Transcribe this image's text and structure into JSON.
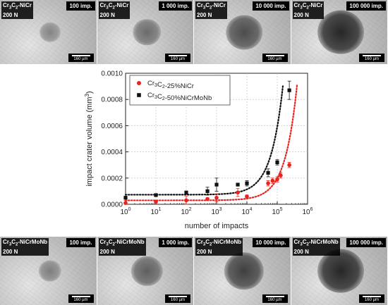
{
  "top_panels": [
    {
      "material": "Cr3C2-NiCr",
      "load": "200 N",
      "impacts": "100 imp.",
      "scale": "160 µm",
      "crater": 0.25
    },
    {
      "material": "Cr3C2-NiCr",
      "load": "200 N",
      "impacts": "1 000 imp.",
      "scale": "160 µm",
      "crater": 0.45
    },
    {
      "material": "Cr3C2-NiCr",
      "load": "200 N",
      "impacts": "10 000 imp.",
      "scale": "160 µm",
      "crater": 0.7
    },
    {
      "material": "Cr3C2-NiCr",
      "load": "200 N",
      "impacts": "100 000 imp.",
      "scale": "160 µm",
      "crater": 1.0
    }
  ],
  "bottom_panels": [
    {
      "material": "Cr3C2-NiCrMoNb",
      "load": "200 N",
      "impacts": "100 imp.",
      "scale": "160 µm",
      "crater": 0.3
    },
    {
      "material": "Cr3C2-NiCrMoNb",
      "load": "200 N",
      "impacts": "1 000 imp.",
      "scale": "160 µm",
      "crater": 0.55
    },
    {
      "material": "Cr3C2-NiCrMoNb",
      "load": "200 N",
      "impacts": "10 000 imp.",
      "scale": "160 µm",
      "crater": 0.8
    },
    {
      "material": "Cr3C2-NiCrMoNb",
      "load": "200 N",
      "impacts": "100 000 imp.",
      "scale": "160 µm",
      "crater": 1.0
    }
  ],
  "chart_data": {
    "type": "scatter",
    "xlabel": "number of impacts",
    "ylabel": "impact crater volume (mm³)",
    "xscale": "log",
    "xlim": [
      1,
      1000000
    ],
    "ylim": [
      0,
      0.001
    ],
    "xticks": [
      1,
      10,
      100,
      1000,
      10000,
      100000,
      1000000
    ],
    "xtick_labels": [
      [
        "10",
        "0"
      ],
      [
        "10",
        "1"
      ],
      [
        "10",
        "2"
      ],
      [
        "10",
        "3"
      ],
      [
        "10",
        "4"
      ],
      [
        "10",
        "5"
      ],
      [
        "10",
        "6"
      ]
    ],
    "yticks": [
      0,
      0.0002,
      0.0004,
      0.0006,
      0.0008,
      0.001
    ],
    "ytick_labels": [
      "0.0000",
      "0.0002",
      "0.0004",
      "0.0006",
      "0.0008",
      "0.0010"
    ],
    "legend_position": "top-left",
    "series": [
      {
        "name": "Cr3C2-25%NiCr",
        "color": "#e8231f",
        "marker": "circle",
        "x": [
          1,
          10,
          100,
          500,
          1000,
          5000,
          10000,
          50000,
          70000,
          100000,
          130000,
          250000
        ],
        "y": [
          1e-05,
          2e-05,
          3e-05,
          4e-05,
          5e-05,
          9e-05,
          6e-05,
          0.00016,
          0.00018,
          0.00019,
          0.00022,
          0.0003
        ],
        "err": [
          2e-05,
          1e-05,
          3e-05,
          1e-05,
          3e-05,
          3e-05,
          1e-05,
          2e-05,
          2e-05,
          2e-05,
          2e-05,
          2e-05
        ],
        "fit": {
          "a": 3e-05,
          "b": 1.4e-06,
          "xmax": 500000
        }
      },
      {
        "name": "Cr3C2-50%NiCrMoNb",
        "color": "#111111",
        "marker": "square",
        "x": [
          1,
          10,
          100,
          500,
          1000,
          5000,
          10000,
          50000,
          100000,
          250000
        ],
        "y": [
          5e-05,
          7e-05,
          9e-05,
          0.0001,
          0.00015,
          0.00015,
          0.00016,
          0.00024,
          0.00032,
          0.00087
        ],
        "err": [
          1e-05,
          1e-05,
          1e-05,
          3e-05,
          5e-05,
          1e-05,
          2e-05,
          3e-05,
          2e-05,
          7e-05
        ],
        "fit": {
          "a": 7.3e-05,
          "b": 3.1e-06,
          "xmax": 290000
        }
      }
    ]
  }
}
